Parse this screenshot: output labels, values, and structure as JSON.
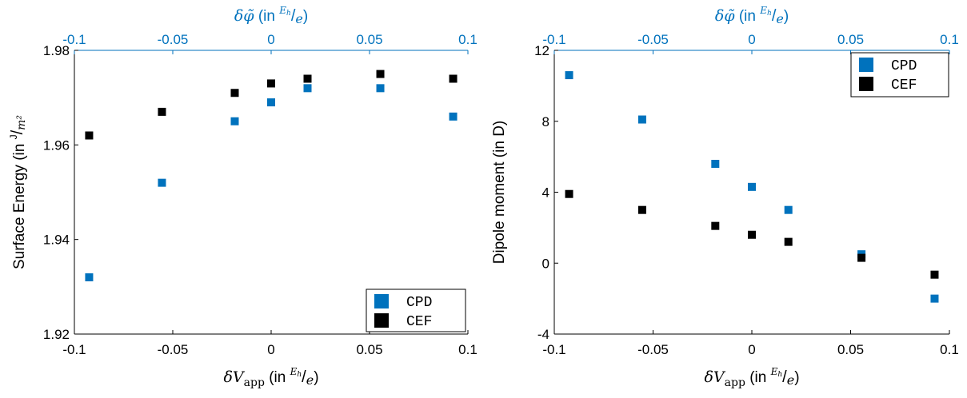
{
  "colors": {
    "CPD": "#0072BD",
    "CEF": "#000000",
    "top_axis": "#0072BD"
  },
  "chart_data": [
    {
      "type": "scatter",
      "x_label": {
        "symbol": "δ",
        "var": "V",
        "sub": "app",
        "unit_prefix": " (in ",
        "unit_num": "E",
        "unit_num_sub": "h",
        "unit_den": "e",
        "unit_suffix": ")"
      },
      "x2_label": {
        "symbol": "δ",
        "var": "φ̃",
        "unit_prefix": " (in ",
        "unit_num": "E",
        "unit_num_sub": "h",
        "unit_den": "e",
        "unit_suffix": ")"
      },
      "y_label": {
        "text": "Surface Energy  (in ",
        "unit_num": "J",
        "unit_den": "m²",
        "unit_suffix": ""
      },
      "xlim": [
        -0.1,
        0.1
      ],
      "ylim": [
        1.92,
        1.98
      ],
      "xticks": [
        "-0.1",
        "-0.05",
        "0",
        "0.05",
        "0.1"
      ],
      "x2ticks": [
        "-0.1",
        "-0.05",
        "0",
        "0.05",
        "0.1"
      ],
      "yticks": [
        "1.92",
        "1.94",
        "1.96",
        "1.98"
      ],
      "xtick_values": [
        -0.1,
        -0.05,
        0,
        0.05,
        0.1
      ],
      "ytick_values": [
        1.92,
        1.94,
        1.96,
        1.98
      ],
      "legend_position": "bottom-right",
      "series": [
        {
          "name": "CPD",
          "x": [
            -0.0925,
            -0.0555,
            -0.0185,
            0.0,
            0.0185,
            0.0555,
            0.0925
          ],
          "y": [
            1.932,
            1.952,
            1.965,
            1.969,
            1.972,
            1.972,
            1.966
          ]
        },
        {
          "name": "CEF",
          "x": [
            -0.0925,
            -0.0555,
            -0.0185,
            0.0,
            0.0185,
            0.0555,
            0.0925
          ],
          "y": [
            1.962,
            1.967,
            1.971,
            1.973,
            1.974,
            1.975,
            1.974
          ]
        }
      ]
    },
    {
      "type": "scatter",
      "x_label": {
        "symbol": "δ",
        "var": "V",
        "sub": "app",
        "unit_prefix": " (in ",
        "unit_num": "E",
        "unit_num_sub": "h",
        "unit_den": "e",
        "unit_suffix": ")"
      },
      "x2_label": {
        "symbol": "δ",
        "var": "φ̃",
        "unit_prefix": " (in ",
        "unit_num": "E",
        "unit_num_sub": "h",
        "unit_den": "e",
        "unit_suffix": ")"
      },
      "y_label": {
        "text": "Dipole moment  (in D)"
      },
      "xlim": [
        -0.1,
        0.1
      ],
      "ylim": [
        -4,
        12
      ],
      "xticks": [
        "-0.1",
        "-0.05",
        "0",
        "0.05",
        "0.1"
      ],
      "x2ticks": [
        "-0.1",
        "-0.05",
        "0",
        "0.05",
        "0.1"
      ],
      "yticks": [
        "-4",
        "0",
        "4",
        "8",
        "12"
      ],
      "xtick_values": [
        -0.1,
        -0.05,
        0,
        0.05,
        0.1
      ],
      "ytick_values": [
        -4,
        0,
        4,
        8,
        12
      ],
      "legend_position": "top-right",
      "series": [
        {
          "name": "CPD",
          "x": [
            -0.0925,
            -0.0555,
            -0.0185,
            0.0,
            0.0185,
            0.0555,
            0.0925
          ],
          "y": [
            10.6,
            8.1,
            5.6,
            4.3,
            3.0,
            0.5,
            -2.0
          ]
        },
        {
          "name": "CEF",
          "x": [
            -0.0925,
            -0.0555,
            -0.0185,
            0.0,
            0.0185,
            0.0555,
            0.0925
          ],
          "y": [
            3.9,
            3.0,
            2.1,
            1.6,
            1.2,
            0.3,
            -0.65
          ]
        }
      ]
    }
  ]
}
